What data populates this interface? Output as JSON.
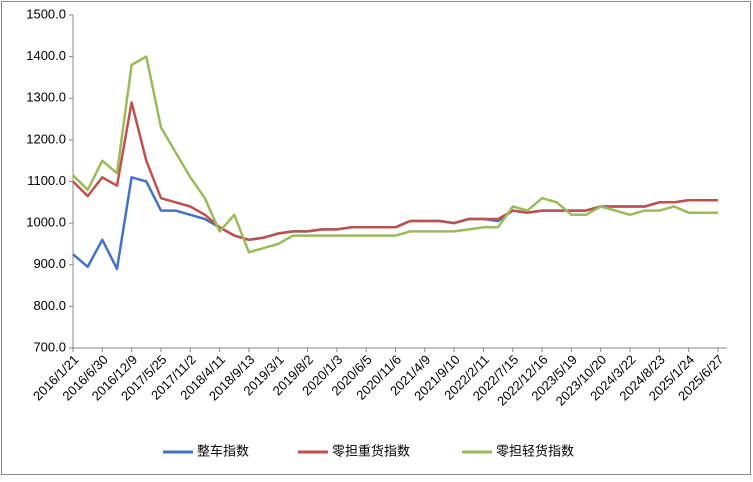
{
  "chart_data": {
    "type": "line",
    "categories": [
      "2016/1/21",
      null,
      "2016/6/30",
      null,
      "2016/12/9",
      null,
      "2017/5/25",
      null,
      "2017/11/2",
      null,
      "2018/4/11",
      null,
      "2018/9/13",
      null,
      "2019/3/1",
      null,
      "2019/8/2",
      null,
      "2020/1/3",
      null,
      "2020/6/5",
      null,
      "2020/11/6",
      null,
      "2021/4/9",
      null,
      "2021/9/10",
      null,
      "2022/2/11",
      null,
      "2022/7/15",
      null,
      "2022/12/16",
      null,
      "2023/5/19",
      null,
      "2023/10/20",
      null,
      "2024/3/22",
      null,
      "2024/8/23",
      null,
      "2025/1/24",
      null,
      "2025/6/27"
    ],
    "series": [
      {
        "name": "整车指数",
        "color": "#4472c4",
        "values": [
          925,
          895,
          960,
          890,
          1110,
          1100,
          1030,
          1030,
          1020,
          1010,
          990,
          970,
          960,
          965,
          975,
          980,
          980,
          985,
          985,
          990,
          990,
          990,
          990,
          1005,
          1005,
          1005,
          1000,
          1010,
          1010,
          1005,
          1030,
          1025,
          1030,
          1030,
          1030,
          1030,
          1040,
          1040,
          1040,
          1040,
          1050,
          1050,
          1055,
          1055,
          1055
        ]
      },
      {
        "name": "零担重货指数",
        "color": "#c0504d",
        "values": [
          1100,
          1065,
          1110,
          1090,
          1290,
          1150,
          1060,
          1050,
          1040,
          1020,
          990,
          970,
          960,
          965,
          975,
          980,
          980,
          985,
          985,
          990,
          990,
          990,
          990,
          1005,
          1005,
          1005,
          1000,
          1010,
          1010,
          1010,
          1030,
          1025,
          1030,
          1030,
          1030,
          1030,
          1040,
          1040,
          1040,
          1040,
          1050,
          1050,
          1055,
          1055,
          1055
        ]
      },
      {
        "name": "零担轻货指数",
        "color": "#9bbb59",
        "values": [
          1115,
          1080,
          1150,
          1120,
          1380,
          1400,
          1230,
          1170,
          1110,
          1060,
          980,
          1020,
          930,
          940,
          950,
          970,
          970,
          970,
          970,
          970,
          970,
          970,
          970,
          980,
          980,
          980,
          980,
          985,
          990,
          990,
          1040,
          1030,
          1060,
          1050,
          1020,
          1020,
          1040,
          1030,
          1020,
          1030,
          1030,
          1040,
          1025,
          1025,
          1025
        ]
      }
    ],
    "ylim": [
      700,
      1500
    ],
    "yticks": [
      {
        "value": 700,
        "label": "700.0"
      },
      {
        "value": 800,
        "label": "800.0"
      },
      {
        "value": 900,
        "label": "900.0"
      },
      {
        "value": 1000,
        "label": "1000.0"
      },
      {
        "value": 1100,
        "label": "1100.0"
      },
      {
        "value": 1200,
        "label": "1200.0"
      },
      {
        "value": 1300,
        "label": "1300.0"
      },
      {
        "value": 1400,
        "label": "1400.0"
      },
      {
        "value": 1500,
        "label": "1500.0"
      }
    ],
    "legend": "bottom"
  }
}
